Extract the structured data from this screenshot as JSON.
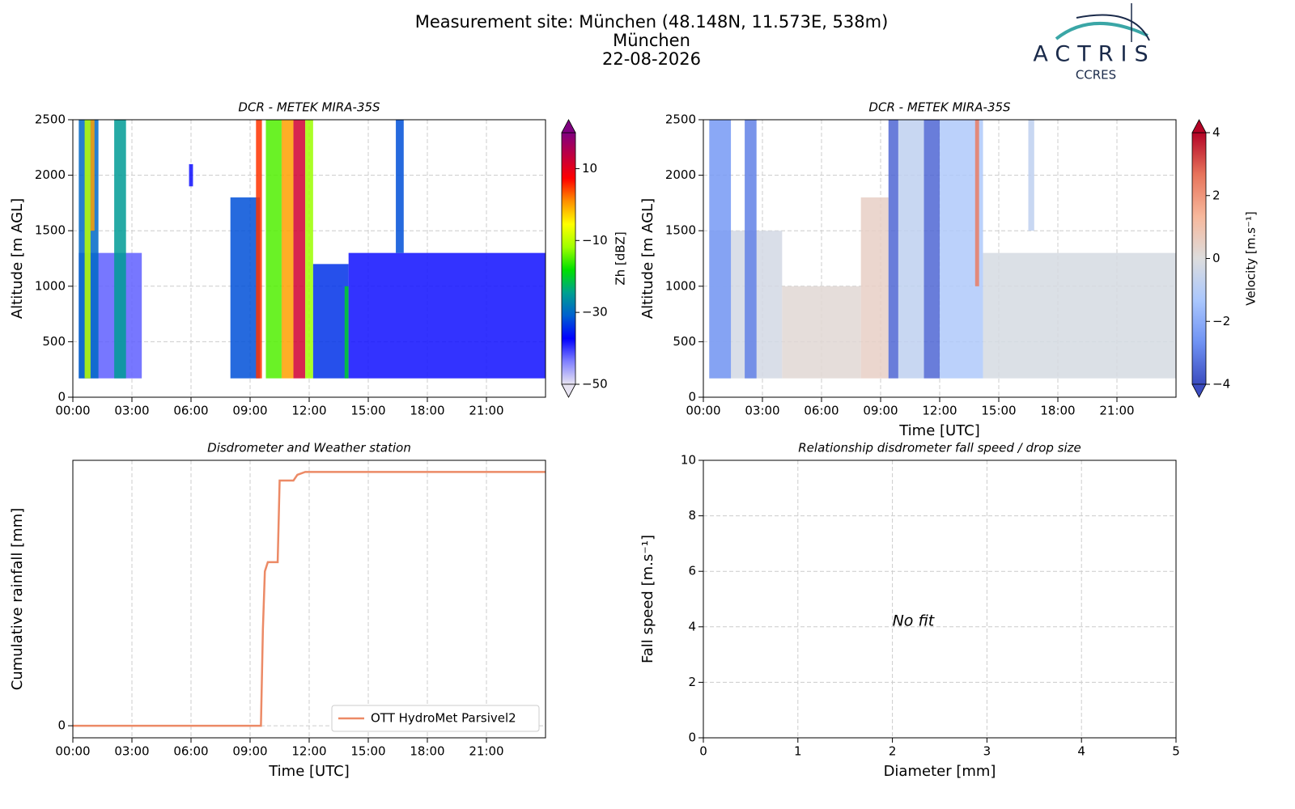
{
  "header": {
    "title": [
      "Measurement site: München (48.148N, 11.573E, 538m)",
      "München",
      "22-08-2026"
    ],
    "logo": "ACTRIS",
    "logo_subtitle": "CCRES"
  },
  "chart_data": [
    {
      "type": "heatmap",
      "title": "DCR - METEK MIRA-35S",
      "ylabel": "Altitude [m AGL]",
      "xlim": [
        0,
        24
      ],
      "xticks": [
        {
          "value": 0,
          "label": "00:00"
        },
        {
          "value": 3,
          "label": "03:00"
        },
        {
          "value": 6,
          "label": "06:00"
        },
        {
          "value": 9,
          "label": "09:00"
        },
        {
          "value": 12,
          "label": "12:00"
        },
        {
          "value": 15,
          "label": "15:00"
        },
        {
          "value": 18,
          "label": "18:00"
        },
        {
          "value": 21,
          "label": "21:00"
        }
      ],
      "ylim": [
        0,
        2500
      ],
      "yticks": [
        0,
        500,
        1000,
        1500,
        2000,
        2500
      ],
      "grid": true,
      "colorbar": {
        "label": "Zh [dBZ]",
        "clim": [
          -50,
          20
        ],
        "ticks": [
          {
            "value": -50,
            "label": "−50"
          },
          {
            "value": -30,
            "label": "−30"
          },
          {
            "value": -10,
            "label": "−10"
          },
          {
            "value": 10,
            "label": "10"
          }
        ],
        "colormap": [
          "#e8e4f2",
          "#8080ff",
          "#0000ff",
          "#0060d0",
          "#00a090",
          "#00e000",
          "#a0ff00",
          "#ffff00",
          "#ff9000",
          "#ff0000",
          "#c00040",
          "#800080"
        ]
      },
      "cells": {
        "x0": [
          0.3,
          0.3,
          0.6,
          0.9,
          2.1,
          8.0,
          9.3,
          9.8,
          10.6,
          11.2,
          11.8,
          12.2,
          13.8,
          14.0,
          16.4,
          5.9
        ],
        "x1": [
          3.5,
          1.3,
          0.9,
          1.1,
          2.7,
          9.5,
          9.6,
          10.6,
          11.2,
          11.8,
          12.2,
          14.0,
          14.0,
          24,
          16.8,
          6.1
        ],
        "y0": [
          170,
          170,
          170,
          1500,
          170,
          170,
          170,
          170,
          170,
          170,
          170,
          170,
          170,
          170,
          1300,
          1900
        ],
        "y1": [
          1300,
          2500,
          2500,
          2500,
          2500,
          1800,
          2500,
          2500,
          2500,
          2500,
          2500,
          1200,
          1000,
          1300,
          2500,
          2100
        ],
        "values": [
          -42,
          -30,
          -10,
          0,
          -25,
          -32,
          5,
          -15,
          0,
          12,
          -12,
          -34,
          -20,
          -38,
          -32,
          -38
        ]
      }
    },
    {
      "type": "heatmap",
      "title": "DCR - METEK MIRA-35S",
      "ylabel": "Altitude [m AGL]",
      "xlabel": "Time [UTC]",
      "xlim": [
        0,
        24
      ],
      "xticks": [
        {
          "value": 0,
          "label": "00:00"
        },
        {
          "value": 3,
          "label": "03:00"
        },
        {
          "value": 6,
          "label": "06:00"
        },
        {
          "value": 9,
          "label": "09:00"
        },
        {
          "value": 12,
          "label": "12:00"
        },
        {
          "value": 15,
          "label": "15:00"
        },
        {
          "value": 18,
          "label": "18:00"
        },
        {
          "value": 21,
          "label": "21:00"
        }
      ],
      "ylim": [
        0,
        2500
      ],
      "yticks": [
        0,
        500,
        1000,
        1500,
        2000,
        2500
      ],
      "grid": true,
      "colorbar": {
        "label": "Velocity [m.s⁻¹]",
        "clim": [
          -4,
          4
        ],
        "ticks": [
          {
            "value": -4,
            "label": "−4"
          },
          {
            "value": -2,
            "label": "−2"
          },
          0,
          2,
          4
        ],
        "colormap": [
          "#3b4cc0",
          "#6f92f3",
          "#aac7fd",
          "#dddddd",
          "#f7b89c",
          "#e7745b",
          "#b40426"
        ]
      },
      "cells": {
        "x0": [
          0.3,
          0.3,
          2.1,
          4,
          8,
          9.4,
          9.9,
          11.2,
          12.0,
          13.8,
          14.2,
          16.5
        ],
        "x1": [
          4,
          1.4,
          2.7,
          8,
          9.4,
          9.9,
          11.2,
          12.0,
          14.2,
          14.0,
          24,
          16.8
        ],
        "y0": [
          170,
          170,
          170,
          170,
          170,
          170,
          170,
          170,
          170,
          1000,
          170,
          1500
        ],
        "y1": [
          1500,
          2500,
          2500,
          1000,
          1800,
          2500,
          2500,
          2500,
          2500,
          2500,
          1300,
          2500
        ],
        "values": [
          -0.3,
          -2.5,
          -3,
          0.2,
          0.5,
          -3.5,
          -0.8,
          -3.5,
          -1.2,
          2.5,
          -0.2,
          -0.8
        ]
      }
    },
    {
      "type": "line",
      "title": "Disdrometer and Weather station",
      "ylabel": "Cumulative rainfall [mm]",
      "xlabel": "Time [UTC]",
      "xlim": [
        0,
        24
      ],
      "xticks": [
        {
          "value": 0,
          "label": "00:00"
        },
        {
          "value": 3,
          "label": "03:00"
        },
        {
          "value": 6,
          "label": "06:00"
        },
        {
          "value": 9,
          "label": "09:00"
        },
        {
          "value": 12,
          "label": "12:00"
        },
        {
          "value": 15,
          "label": "15:00"
        },
        {
          "value": 18,
          "label": "18:00"
        },
        {
          "value": 21,
          "label": "21:00"
        }
      ],
      "ylim": [
        -0.25,
        5.5
      ],
      "yticks": [
        0
      ],
      "grid": true,
      "legend": "lower right",
      "x": [
        0,
        9.55,
        9.65,
        9.75,
        9.9,
        10.4,
        10.5,
        11.2,
        11.4,
        11.8,
        24
      ],
      "series": [
        {
          "name": "OTT HydroMet Parsivel2",
          "color": "#ec8a66",
          "values": [
            0,
            0,
            2.0,
            3.2,
            3.39,
            3.39,
            5.08,
            5.08,
            5.2,
            5.26,
            5.26
          ]
        }
      ]
    },
    {
      "type": "scatter",
      "title": "Relationship disdrometer fall speed / drop size",
      "ylabel": "Fall speed [m.s⁻¹]",
      "xlabel": "Diameter [mm]",
      "xlim": [
        0,
        5
      ],
      "xticks": [
        0,
        1,
        2,
        3,
        4,
        5
      ],
      "ylim": [
        0,
        10
      ],
      "yticks": [
        0,
        2,
        4,
        6,
        8,
        10
      ],
      "grid": true,
      "annotation": "No fit"
    }
  ]
}
